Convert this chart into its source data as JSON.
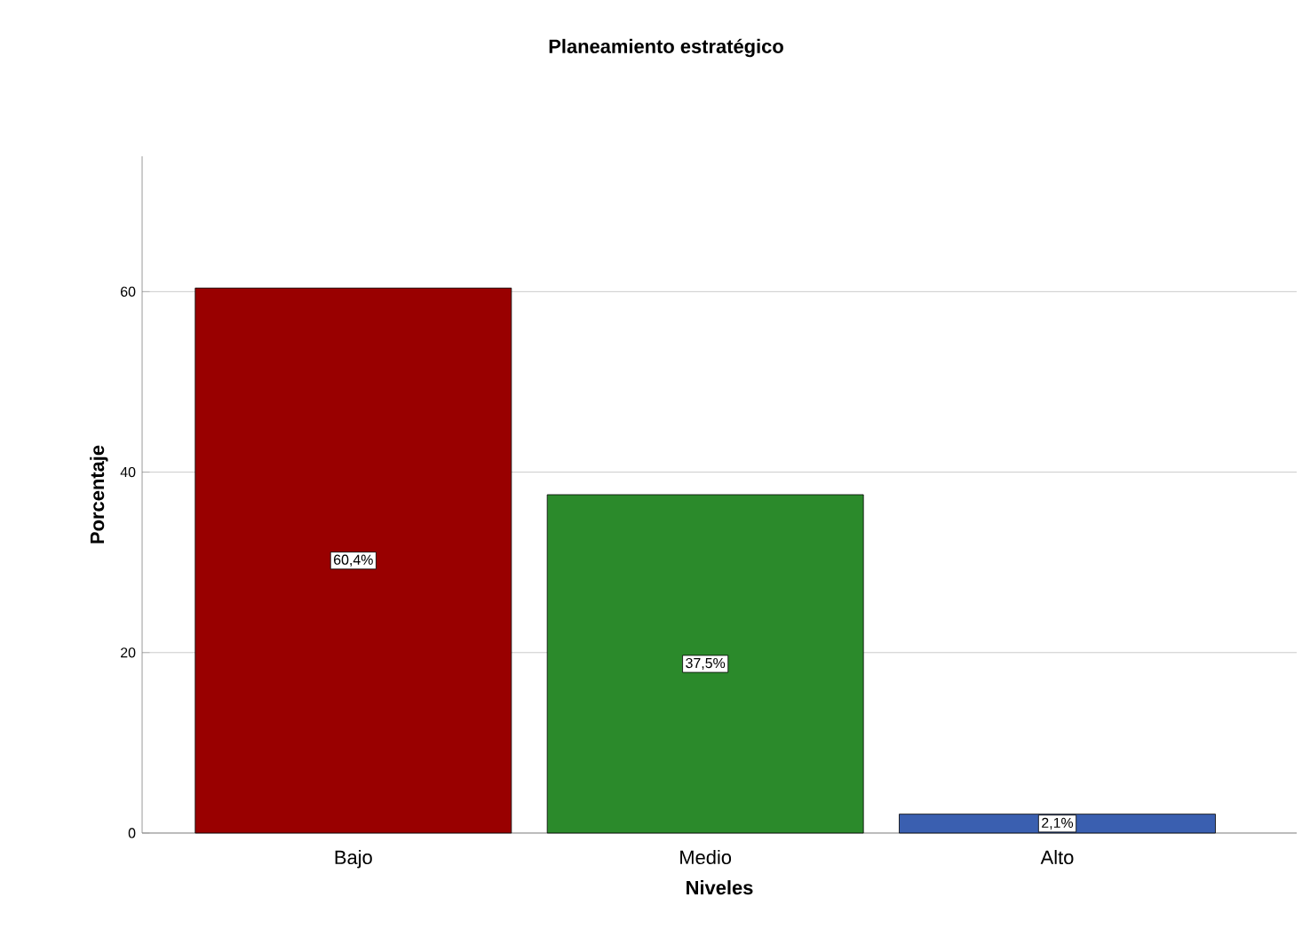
{
  "chart_data": {
    "type": "bar",
    "title": "Planeamiento estratégico",
    "xlabel": "Niveles",
    "ylabel": "Porcentaje",
    "categories": [
      "Bajo",
      "Medio",
      "Alto"
    ],
    "values": [
      60.4,
      37.5,
      2.1
    ],
    "colors": [
      "#990000",
      "#2b8a2b",
      "#3a5fb0"
    ],
    "value_labels": [
      "60,4%",
      "37,5%",
      "2,1%"
    ],
    "ylim": [
      0,
      75
    ],
    "yticks": [
      0,
      20,
      40,
      60
    ],
    "grid": "y"
  }
}
